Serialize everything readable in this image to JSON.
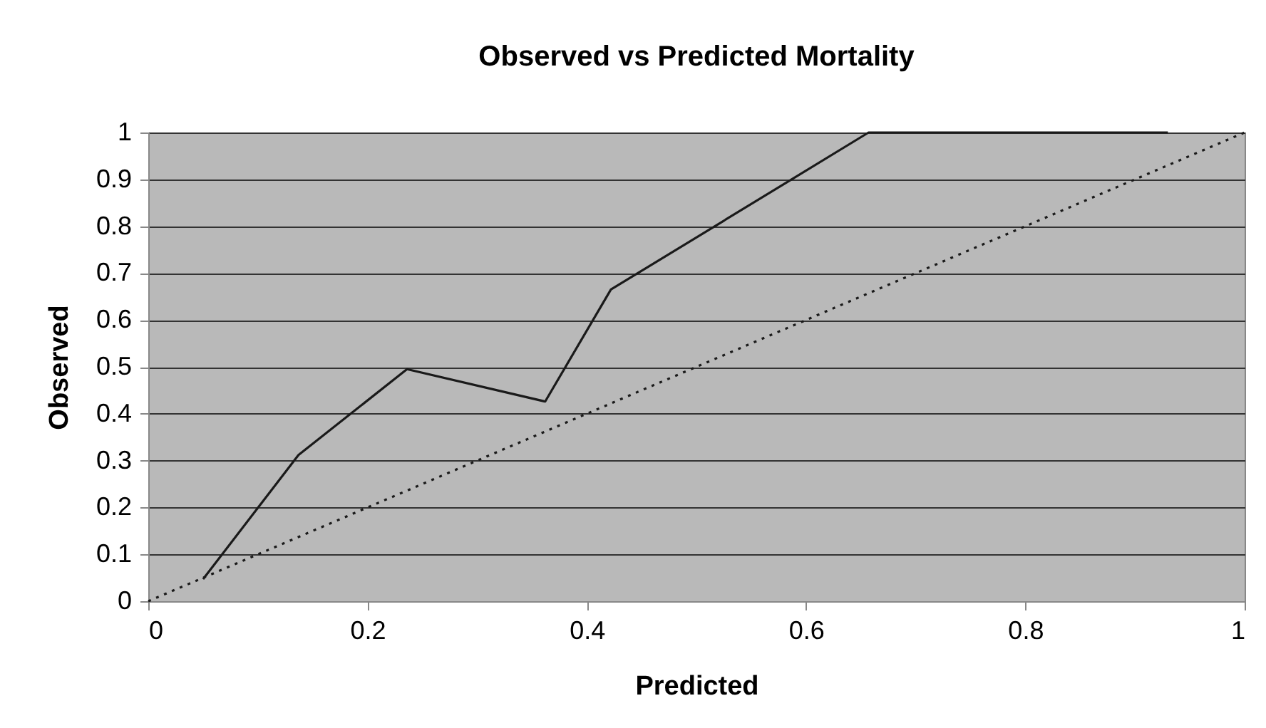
{
  "chart_data": {
    "type": "line",
    "title": "Observed vs Predicted Mortality",
    "xlabel": "Predicted",
    "ylabel": "Observed",
    "xlim": [
      0,
      1
    ],
    "ylim": [
      0,
      1
    ],
    "xticks": [
      0,
      0.2,
      0.4,
      0.6,
      0.8,
      1
    ],
    "yticks": [
      0,
      0.1,
      0.2,
      0.3,
      0.4,
      0.5,
      0.6,
      0.7,
      0.8,
      0.9,
      1
    ],
    "grid": "y",
    "marker": "none",
    "series": [
      {
        "color": "#1a1a1a",
        "line_style": "solid",
        "x": [
          0.05,
          0.137,
          0.236,
          0.362,
          0.422,
          0.657,
          0.93
        ],
        "values": [
          0.047,
          0.312,
          0.495,
          0.426,
          0.665,
          1,
          1
        ]
      },
      {
        "color": "#1a1a1a",
        "line_style": "dotted",
        "x": [
          0,
          1
        ],
        "values": [
          0,
          1
        ]
      }
    ]
  }
}
